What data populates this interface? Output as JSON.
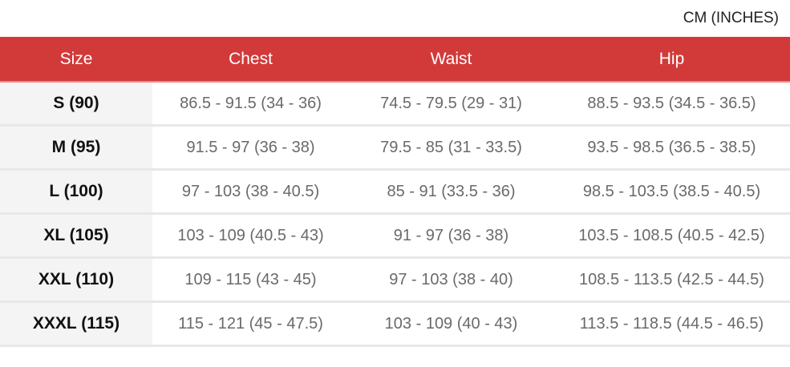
{
  "unit_label": "CM (INCHES)",
  "headers": [
    "Size",
    "Chest",
    "Waist",
    "Hip"
  ],
  "rows": [
    [
      "S (90)",
      "86.5 - 91.5 (34 - 36)",
      "74.5 - 79.5 (29 - 31)",
      "88.5 - 93.5 (34.5 - 36.5)"
    ],
    [
      "M (95)",
      "91.5 - 97 (36 - 38)",
      "79.5 - 85 (31 - 33.5)",
      "93.5 - 98.5 (36.5 - 38.5)"
    ],
    [
      "L (100)",
      "97 - 103 (38 - 40.5)",
      "85 - 91 (33.5 - 36)",
      "98.5 - 103.5 (38.5 - 40.5)"
    ],
    [
      "XL (105)",
      "103 - 109 (40.5 - 43)",
      "91 - 97 (36 - 38)",
      "103.5 - 108.5 (40.5 - 42.5)"
    ],
    [
      "XXL (110)",
      "109 - 115 (43 - 45)",
      "97 - 103 (38 - 40)",
      "108.5 - 113.5 (42.5 - 44.5)"
    ],
    [
      "XXXL (115)",
      "115 - 121 (45 - 47.5)",
      "103 - 109 (40 - 43)",
      "113.5 - 118.5 (44.5 - 46.5)"
    ]
  ],
  "colors": {
    "header": "#d23a3a",
    "size_column": "#f4f4f4"
  }
}
